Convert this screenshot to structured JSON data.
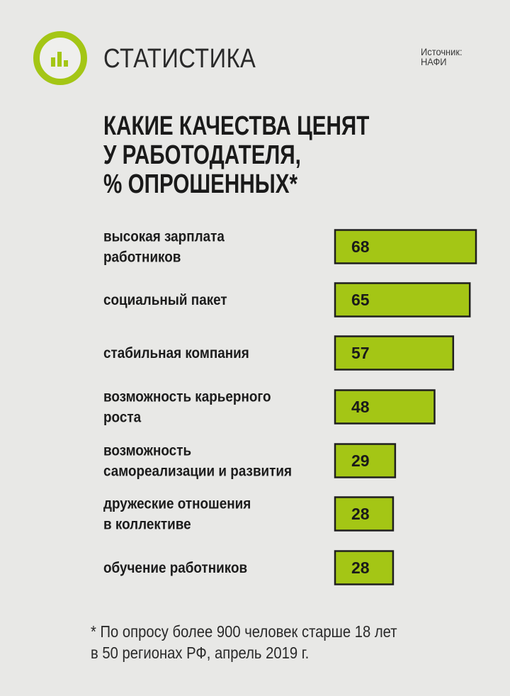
{
  "header": {
    "section_title": "СТАТИСТИКА",
    "source_line1": "Источник:",
    "source_line2": "НАФИ",
    "logo_icon": "bar-chart-icon"
  },
  "colors": {
    "accent": "#a4c615",
    "bar": "#a4c615",
    "bar_border": "#1f1f1f",
    "background": "#e8e8e6",
    "text": "#1c1c1c"
  },
  "chart_data": {
    "type": "bar",
    "orientation": "horizontal",
    "title_lines": [
      "КАКИЕ КАЧЕСТВА ЦЕНЯТ",
      "У РАБОТОДАТЕЛЯ,",
      "% ОПРОШЕННЫХ*"
    ],
    "unit": "%",
    "categories": [
      [
        "высокая зарплата",
        "работников"
      ],
      [
        "социальный пакет"
      ],
      [
        "стабильная компания"
      ],
      [
        "возможность карьерного",
        "роста"
      ],
      [
        "возможность",
        "самореализации и развития"
      ],
      [
        "дружеские отношения",
        "в коллективе"
      ],
      [
        "обучение работников"
      ]
    ],
    "values": [
      68,
      65,
      57,
      48,
      29,
      28,
      28
    ],
    "value_labels": [
      "68",
      "65",
      "57",
      "48",
      "29",
      "28",
      "28"
    ],
    "xlim": [
      0,
      68
    ],
    "grid": false,
    "legend": "none"
  },
  "footnote": {
    "line1": "* По опросу более 900 человек старше 18 лет",
    "line2": "в 50 регионах РФ, апрель 2019 г."
  }
}
